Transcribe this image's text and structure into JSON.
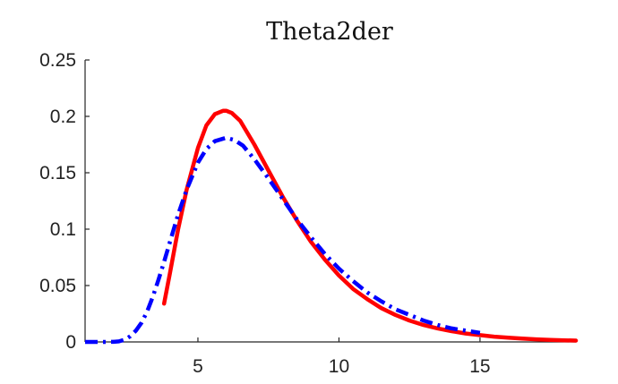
{
  "chart_data": {
    "type": "line",
    "title": "Theta2der",
    "xlabel": "",
    "ylabel": "",
    "xlim": [
      1,
      18.4
    ],
    "ylim": [
      0,
      0.25
    ],
    "xticks": [
      5,
      10,
      15
    ],
    "yticks": [
      0,
      0.05,
      0.1,
      0.15,
      0.2,
      0.25
    ],
    "xtick_labels": [
      "5",
      "10",
      "15"
    ],
    "ytick_labels": [
      "0",
      "0.05",
      "0.1",
      "0.15",
      "0.2",
      "0.25"
    ],
    "grid": false,
    "series": [
      {
        "style": "solid",
        "color": "#ff0000",
        "x": [
          3.8,
          4.0,
          4.3,
          4.6,
          5.0,
          5.3,
          5.6,
          5.9,
          6.0,
          6.2,
          6.5,
          7.0,
          7.5,
          8.0,
          8.5,
          9.0,
          9.5,
          10.0,
          10.5,
          11.0,
          11.5,
          12.0,
          12.5,
          13.0,
          13.5,
          14.0,
          14.5,
          15.0,
          15.5,
          16.0,
          16.5,
          17.0,
          17.5,
          18.0,
          18.4
        ],
        "y": [
          0.034,
          0.06,
          0.1,
          0.135,
          0.172,
          0.192,
          0.202,
          0.205,
          0.205,
          0.203,
          0.196,
          0.175,
          0.152,
          0.129,
          0.108,
          0.089,
          0.073,
          0.059,
          0.047,
          0.038,
          0.03,
          0.024,
          0.019,
          0.015,
          0.012,
          0.0095,
          0.0075,
          0.006,
          0.0047,
          0.0037,
          0.0029,
          0.0023,
          0.0018,
          0.0014,
          0.0012
        ]
      },
      {
        "style": "dash-dot",
        "color": "#0000ff",
        "x": [
          1.0,
          1.5,
          2.0,
          2.2,
          2.4,
          2.6,
          2.8,
          3.0,
          3.2,
          3.4,
          3.6,
          3.8,
          4.0,
          4.3,
          4.6,
          5.0,
          5.3,
          5.6,
          6.0,
          6.3,
          6.6,
          7.0,
          7.5,
          8.0,
          8.5,
          9.0,
          9.5,
          10.0,
          10.5,
          11.0,
          11.5,
          12.0,
          12.5,
          13.0,
          13.5,
          14.0,
          14.5,
          15.0
        ],
        "y": [
          0.0,
          0.0,
          0.0001,
          0.0005,
          0.002,
          0.005,
          0.01,
          0.017,
          0.027,
          0.04,
          0.055,
          0.071,
          0.088,
          0.113,
          0.135,
          0.159,
          0.171,
          0.178,
          0.181,
          0.179,
          0.174,
          0.162,
          0.145,
          0.127,
          0.109,
          0.093,
          0.078,
          0.065,
          0.054,
          0.044,
          0.036,
          0.029,
          0.024,
          0.019,
          0.015,
          0.012,
          0.01,
          0.008
        ]
      }
    ]
  }
}
